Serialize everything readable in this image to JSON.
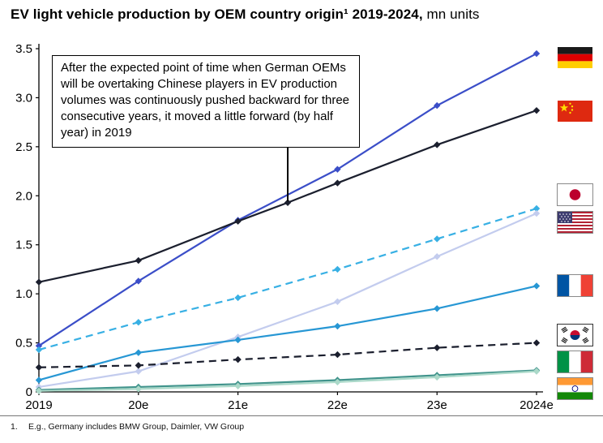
{
  "title": {
    "bold": "EV light vehicle production by OEM country origin¹ 2019-2024,",
    "regular": " mn units"
  },
  "annotation": {
    "text": "After the expected point of time when German OEMs will be overtaking Chinese players in EV production volumes was continuously pushed backward for three consecutive years, it moved a little forward (by half year) in 2019"
  },
  "footnote": {
    "marker": "1.",
    "text": "E.g., Germany includes BMW Group, Daimler, VW Group"
  },
  "chart_data": {
    "type": "line",
    "title": "EV light vehicle production by OEM country origin 2019-2024",
    "ylabel": "mn units",
    "x_categories": [
      "2019",
      "20e",
      "21e",
      "22e",
      "23e",
      "2024e"
    ],
    "ylim": [
      0,
      3.5
    ],
    "yticks": [
      "0",
      "0.5",
      "1.0",
      "1.5",
      "2.0",
      "2.5",
      "3.0",
      "3.5"
    ],
    "grid": false,
    "legend_position": "flags at right end of each line",
    "marker": "diamond",
    "series": [
      {
        "name": "Germany",
        "flag": "germany",
        "color": "#3B4EC8",
        "dash": false,
        "points": [
          [
            0,
            0.47
          ],
          [
            1,
            1.13
          ],
          [
            2,
            1.75
          ],
          [
            3,
            2.27
          ],
          [
            4,
            2.92
          ],
          [
            5,
            3.45
          ]
        ]
      },
      {
        "name": "China",
        "flag": "china",
        "color": "#1B1F2E",
        "dash": false,
        "points": [
          [
            0,
            1.12
          ],
          [
            1,
            1.34
          ],
          [
            2,
            1.74
          ],
          [
            2.5,
            1.93
          ],
          [
            3,
            2.13
          ],
          [
            4,
            2.52
          ],
          [
            5,
            2.87
          ]
        ]
      },
      {
        "name": "Japan",
        "flag": "japan",
        "color": "#38B0E4",
        "dash": true,
        "points": [
          [
            0,
            0.43
          ],
          [
            1,
            0.71
          ],
          [
            2,
            0.96
          ],
          [
            3,
            1.25
          ],
          [
            4,
            1.56
          ],
          [
            5,
            1.87
          ]
        ]
      },
      {
        "name": "United States",
        "flag": "usa",
        "color": "#C3CCEE",
        "dash": false,
        "points": [
          [
            0,
            0.05
          ],
          [
            1,
            0.21
          ],
          [
            2,
            0.56
          ],
          [
            3,
            0.92
          ],
          [
            4,
            1.38
          ],
          [
            5,
            1.82
          ]
        ]
      },
      {
        "name": "France",
        "flag": "france",
        "color": "#2797D4",
        "dash": false,
        "points": [
          [
            0,
            0.12
          ],
          [
            1,
            0.4
          ],
          [
            2,
            0.53
          ],
          [
            3,
            0.67
          ],
          [
            4,
            0.85
          ],
          [
            5,
            1.08
          ]
        ]
      },
      {
        "name": "South Korea",
        "flag": "south-korea",
        "color": "#1B1F2E",
        "dash": true,
        "points": [
          [
            0,
            0.25
          ],
          [
            1,
            0.27
          ],
          [
            2,
            0.33
          ],
          [
            3,
            0.38
          ],
          [
            4,
            0.45
          ],
          [
            5,
            0.5
          ]
        ]
      },
      {
        "name": "Italy",
        "flag": "italy",
        "color": "#41948C",
        "dash": false,
        "points": [
          [
            0,
            0.02
          ],
          [
            1,
            0.05
          ],
          [
            2,
            0.08
          ],
          [
            3,
            0.12
          ],
          [
            4,
            0.17
          ],
          [
            5,
            0.22
          ]
        ]
      },
      {
        "name": "India",
        "flag": "india",
        "color": "#ABD9C9",
        "dash": false,
        "points": [
          [
            0,
            0.01
          ],
          [
            1,
            0.03
          ],
          [
            2,
            0.06
          ],
          [
            3,
            0.1
          ],
          [
            4,
            0.15
          ],
          [
            5,
            0.21
          ]
        ]
      }
    ],
    "annotation_arrow_target": {
      "x": 2.5,
      "y": 1.93
    }
  }
}
